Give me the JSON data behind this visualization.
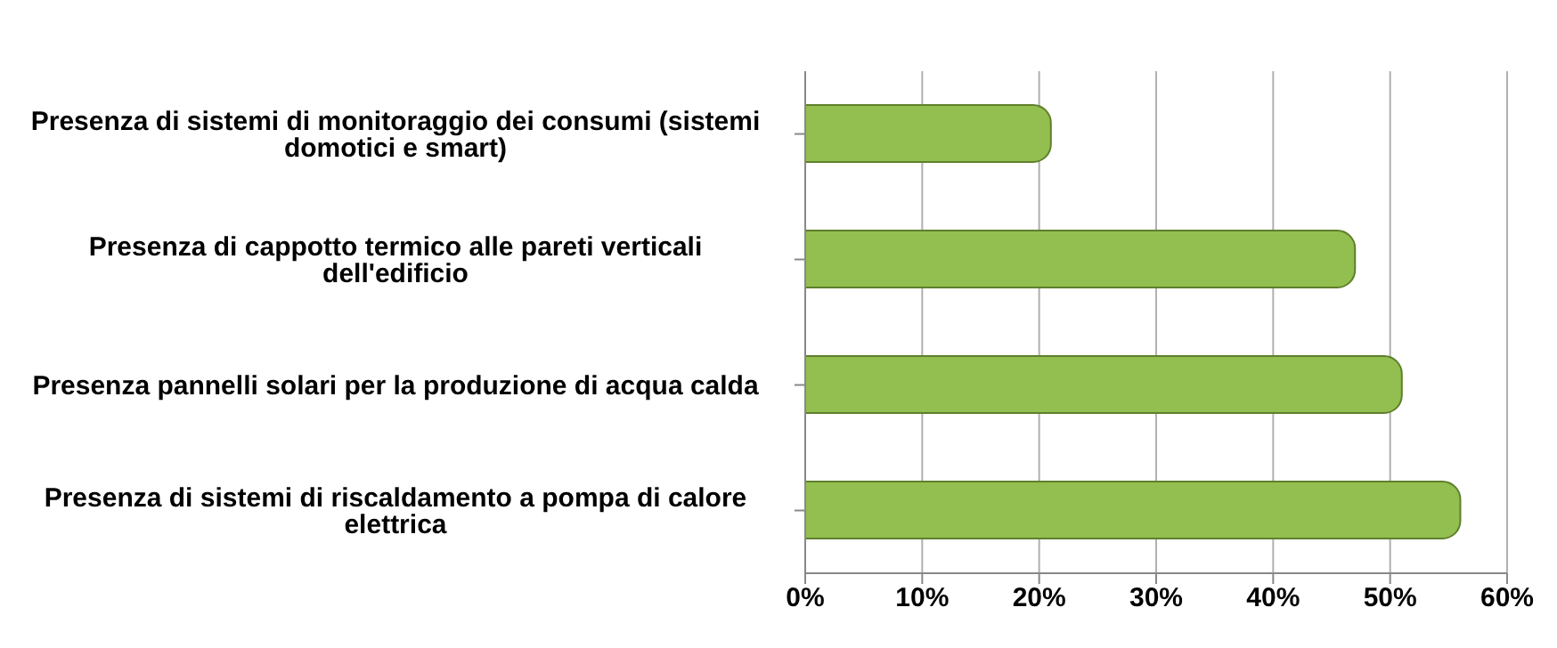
{
  "chart_data": {
    "type": "bar",
    "orientation": "horizontal",
    "categories": [
      "Presenza di sistemi di monitoraggio dei consumi (sistemi domotici e smart)",
      "Presenza di cappotto termico alle pareti verticali dell'edificio",
      "Presenza pannelli solari per la produzione di acqua calda",
      "Presenza di sistemi di riscaldamento a pompa di calore elettrica"
    ],
    "values": [
      21,
      47,
      51,
      56
    ],
    "color": "#92bf4f",
    "xlim": [
      0,
      60
    ],
    "xticks": [
      {
        "value": 0,
        "label": "0%"
      },
      {
        "value": 10,
        "label": "10%"
      },
      {
        "value": 20,
        "label": "20%"
      },
      {
        "value": 30,
        "label": "30%"
      },
      {
        "value": 40,
        "label": "40%"
      },
      {
        "value": 50,
        "label": "50%"
      },
      {
        "value": 60,
        "label": "60%"
      }
    ],
    "grid": "x",
    "legend": false
  }
}
